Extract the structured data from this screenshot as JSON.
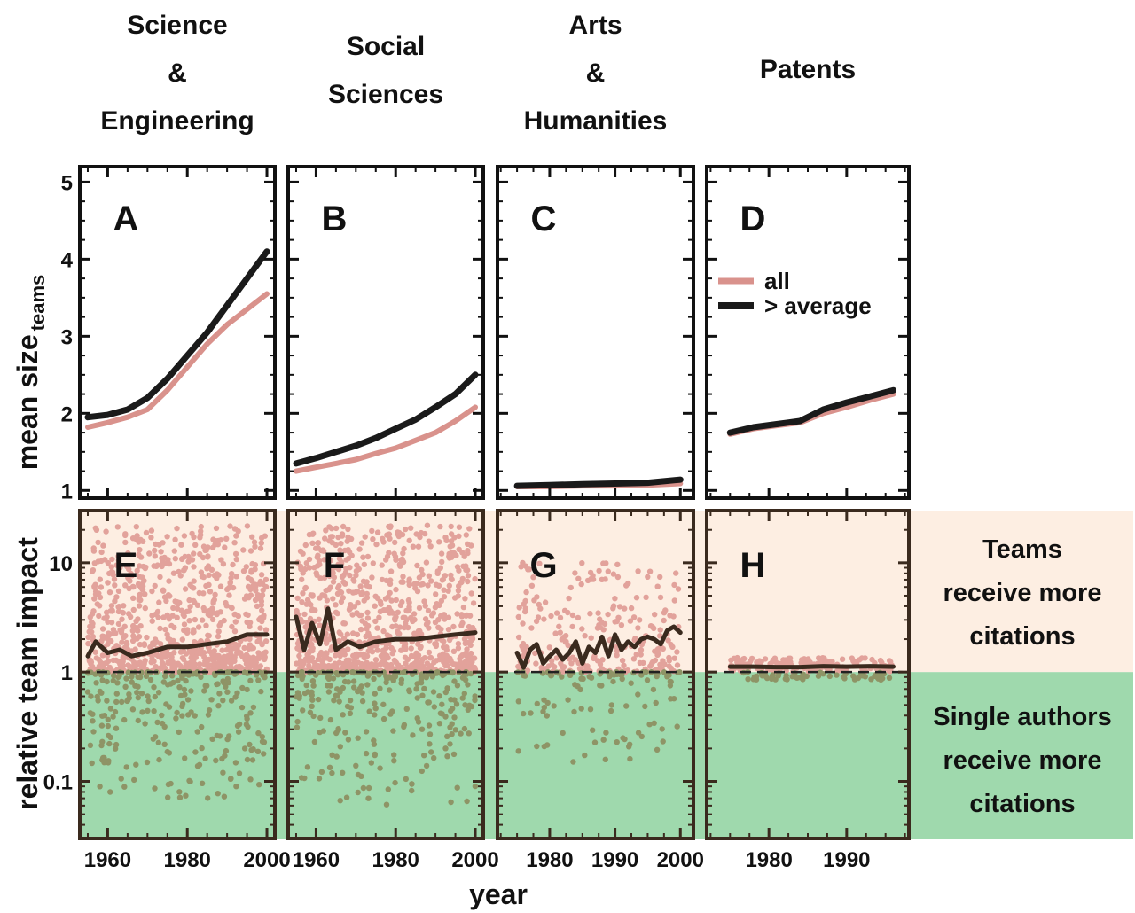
{
  "colors": {
    "all": "#d9928c",
    "above_average": "#1a1a1a",
    "scatter_above": "#e2a29b",
    "scatter_below": "#8e9466",
    "impact_line": "#3a2a1e",
    "top_band": "#fdeee2",
    "bottom_band": "#9fd9ad",
    "frame_top": "#111111",
    "frame_bottom": "#3a2a1e"
  },
  "columns": [
    {
      "title_lines": [
        "Science",
        "&",
        "Engineering"
      ]
    },
    {
      "title_lines": [
        "Social",
        "Sciences"
      ]
    },
    {
      "title_lines": [
        "Arts",
        "&",
        "Humanities"
      ]
    },
    {
      "title_lines": [
        "Patents"
      ]
    }
  ],
  "y_axis_top": {
    "label": "mean size",
    "label_sub": "teams",
    "ticks": [
      "1",
      "2",
      "3",
      "4",
      "5"
    ]
  },
  "y_axis_bottom": {
    "label": "relative team impact",
    "ticks": [
      "0.1",
      "1",
      "10"
    ]
  },
  "x_axis": {
    "label": "year"
  },
  "legend": {
    "items": [
      "all",
      "> average"
    ]
  },
  "regions": {
    "teams_lines": [
      "Teams",
      "receive more",
      "citations"
    ],
    "single_lines": [
      "Single authors",
      "receive more",
      "citations"
    ]
  },
  "chart_data": [
    {
      "panel": "A",
      "type": "line",
      "xlabel": "year",
      "ylabel": "mean size teams",
      "xlim": [
        1953,
        2002
      ],
      "ylim": [
        0.9,
        5.2
      ],
      "scale": "linear",
      "x_ticks": [
        "1960",
        "1980",
        "2000"
      ],
      "y_ticks": [
        "1",
        "2",
        "3",
        "4",
        "5"
      ],
      "series": [
        {
          "name": "all",
          "x": [
            1955,
            1960,
            1965,
            1970,
            1975,
            1980,
            1985,
            1990,
            1995,
            2000
          ],
          "y": [
            1.82,
            1.88,
            1.95,
            2.05,
            2.3,
            2.6,
            2.9,
            3.15,
            3.35,
            3.55
          ]
        },
        {
          "name": "> average",
          "x": [
            1955,
            1960,
            1965,
            1970,
            1975,
            1980,
            1985,
            1990,
            1995,
            2000
          ],
          "y": [
            1.95,
            1.98,
            2.05,
            2.2,
            2.45,
            2.75,
            3.05,
            3.4,
            3.75,
            4.1
          ]
        }
      ]
    },
    {
      "panel": "B",
      "type": "line",
      "xlabel": "year",
      "ylabel": "mean size teams",
      "xlim": [
        1953,
        2002
      ],
      "ylim": [
        0.9,
        5.2
      ],
      "scale": "linear",
      "x_ticks": [
        "1960",
        "1980",
        "2000"
      ],
      "y_ticks": [
        "1",
        "2",
        "3",
        "4",
        "5"
      ],
      "series": [
        {
          "name": "all",
          "x": [
            1955,
            1960,
            1965,
            1970,
            1975,
            1980,
            1985,
            1990,
            1995,
            2000
          ],
          "y": [
            1.25,
            1.3,
            1.35,
            1.4,
            1.48,
            1.55,
            1.65,
            1.75,
            1.9,
            2.08
          ]
        },
        {
          "name": "> average",
          "x": [
            1955,
            1960,
            1965,
            1970,
            1975,
            1980,
            1985,
            1990,
            1995,
            2000
          ],
          "y": [
            1.35,
            1.42,
            1.5,
            1.58,
            1.68,
            1.8,
            1.92,
            2.08,
            2.25,
            2.5
          ]
        }
      ]
    },
    {
      "panel": "C",
      "type": "line",
      "xlabel": "year",
      "ylabel": "mean size teams",
      "xlim": [
        1972,
        2002
      ],
      "ylim": [
        0.9,
        5.2
      ],
      "scale": "linear",
      "x_ticks": [
        "1980",
        "1990",
        "2000"
      ],
      "y_ticks": [
        "1",
        "2",
        "3",
        "4",
        "5"
      ],
      "series": [
        {
          "name": "all",
          "x": [
            1975,
            1980,
            1985,
            1990,
            1995,
            2000
          ],
          "y": [
            1.05,
            1.05,
            1.06,
            1.06,
            1.07,
            1.09
          ]
        },
        {
          "name": "> average",
          "x": [
            1975,
            1980,
            1985,
            1990,
            1995,
            2000
          ],
          "y": [
            1.06,
            1.07,
            1.08,
            1.09,
            1.1,
            1.14
          ]
        }
      ]
    },
    {
      "panel": "D",
      "type": "line",
      "xlabel": "year",
      "ylabel": "mean size teams",
      "xlim": [
        1972,
        1998
      ],
      "ylim": [
        0.9,
        5.2
      ],
      "scale": "linear",
      "x_ticks": [
        "1980",
        "1990"
      ],
      "y_ticks": [
        "1",
        "2",
        "3",
        "4",
        "5"
      ],
      "legend": "top-right",
      "series": [
        {
          "name": "all",
          "x": [
            1975,
            1978,
            1981,
            1984,
            1987,
            1990,
            1993,
            1996
          ],
          "y": [
            1.73,
            1.8,
            1.84,
            1.88,
            2.0,
            2.08,
            2.17,
            2.25
          ]
        },
        {
          "name": "> average",
          "x": [
            1975,
            1978,
            1981,
            1984,
            1987,
            1990,
            1993,
            1996
          ],
          "y": [
            1.75,
            1.82,
            1.86,
            1.9,
            2.05,
            2.14,
            2.22,
            2.3
          ]
        }
      ]
    },
    {
      "panel": "E",
      "type": "scatter",
      "xlabel": "year",
      "ylabel": "relative team impact",
      "xlim": [
        1953,
        2002
      ],
      "ylim": [
        0.03,
        30
      ],
      "scale": "log",
      "x_ticks": [
        "1960",
        "1980",
        "2000"
      ],
      "y_ticks": [
        "0.1",
        "1",
        "10"
      ],
      "scatter": {
        "x_range": [
          1955,
          2000
        ],
        "above_max": 22,
        "below_min": 0.07
      },
      "series": [
        {
          "name": "",
          "x": [
            1955,
            1957,
            1960,
            1963,
            1966,
            1970,
            1975,
            1980,
            1985,
            1990,
            1995,
            2000
          ],
          "y": [
            1.4,
            1.9,
            1.5,
            1.6,
            1.4,
            1.5,
            1.7,
            1.7,
            1.8,
            1.9,
            2.2,
            2.2
          ]
        }
      ]
    },
    {
      "panel": "F",
      "type": "scatter",
      "xlabel": "year",
      "ylabel": "relative team impact",
      "xlim": [
        1953,
        2002
      ],
      "ylim": [
        0.03,
        30
      ],
      "scale": "log",
      "x_ticks": [
        "1960",
        "1980",
        "2000"
      ],
      "y_ticks": [
        "0.1",
        "1",
        "10"
      ],
      "scatter": {
        "x_range": [
          1955,
          2000
        ],
        "above_max": 22,
        "below_min": 0.06
      },
      "series": [
        {
          "name": "",
          "x": [
            1955,
            1957,
            1959,
            1961,
            1963,
            1965,
            1968,
            1971,
            1975,
            1980,
            1985,
            1990,
            1995,
            2000
          ],
          "y": [
            3.2,
            1.6,
            2.8,
            1.8,
            3.8,
            1.6,
            1.9,
            1.7,
            1.9,
            2.0,
            2.0,
            2.1,
            2.2,
            2.3
          ]
        }
      ]
    },
    {
      "panel": "G",
      "type": "scatter",
      "xlabel": "year",
      "ylabel": "relative team impact",
      "xlim": [
        1972,
        2002
      ],
      "ylim": [
        0.03,
        30
      ],
      "scale": "log",
      "x_ticks": [
        "1980",
        "1990",
        "2000"
      ],
      "y_ticks": [
        "0.1",
        "1",
        "10"
      ],
      "scatter": {
        "x_range": [
          1975,
          2000
        ],
        "above_max": 10,
        "below_min": 0.15
      },
      "series": [
        {
          "name": "",
          "x": [
            1975,
            1976,
            1977,
            1978,
            1979,
            1980,
            1981,
            1982,
            1983,
            1984,
            1985,
            1986,
            1987,
            1988,
            1989,
            1990,
            1991,
            1992,
            1993,
            1994,
            1995,
            1996,
            1997,
            1998,
            1999,
            2000
          ],
          "y": [
            1.5,
            1.1,
            1.6,
            1.8,
            1.2,
            1.4,
            1.6,
            1.3,
            1.5,
            1.9,
            1.2,
            1.7,
            1.5,
            2.1,
            1.4,
            2.2,
            1.6,
            1.9,
            1.7,
            2.0,
            2.1,
            2.0,
            1.8,
            2.4,
            2.6,
            2.3
          ]
        }
      ]
    },
    {
      "panel": "H",
      "type": "scatter",
      "xlabel": "year",
      "ylabel": "relative team impact",
      "xlim": [
        1972,
        1998
      ],
      "ylim": [
        0.03,
        30
      ],
      "scale": "log",
      "x_ticks": [
        "1980",
        "1990"
      ],
      "y_ticks": [
        "0.1",
        "1",
        "10"
      ],
      "scatter": {
        "x_range": [
          1975,
          1996
        ],
        "above_max": 1.35,
        "below_min": 0.85
      },
      "series": [
        {
          "name": "",
          "x": [
            1975,
            1978,
            1981,
            1984,
            1987,
            1990,
            1993,
            1996
          ],
          "y": [
            1.12,
            1.12,
            1.11,
            1.11,
            1.13,
            1.12,
            1.13,
            1.12
          ]
        }
      ]
    }
  ]
}
